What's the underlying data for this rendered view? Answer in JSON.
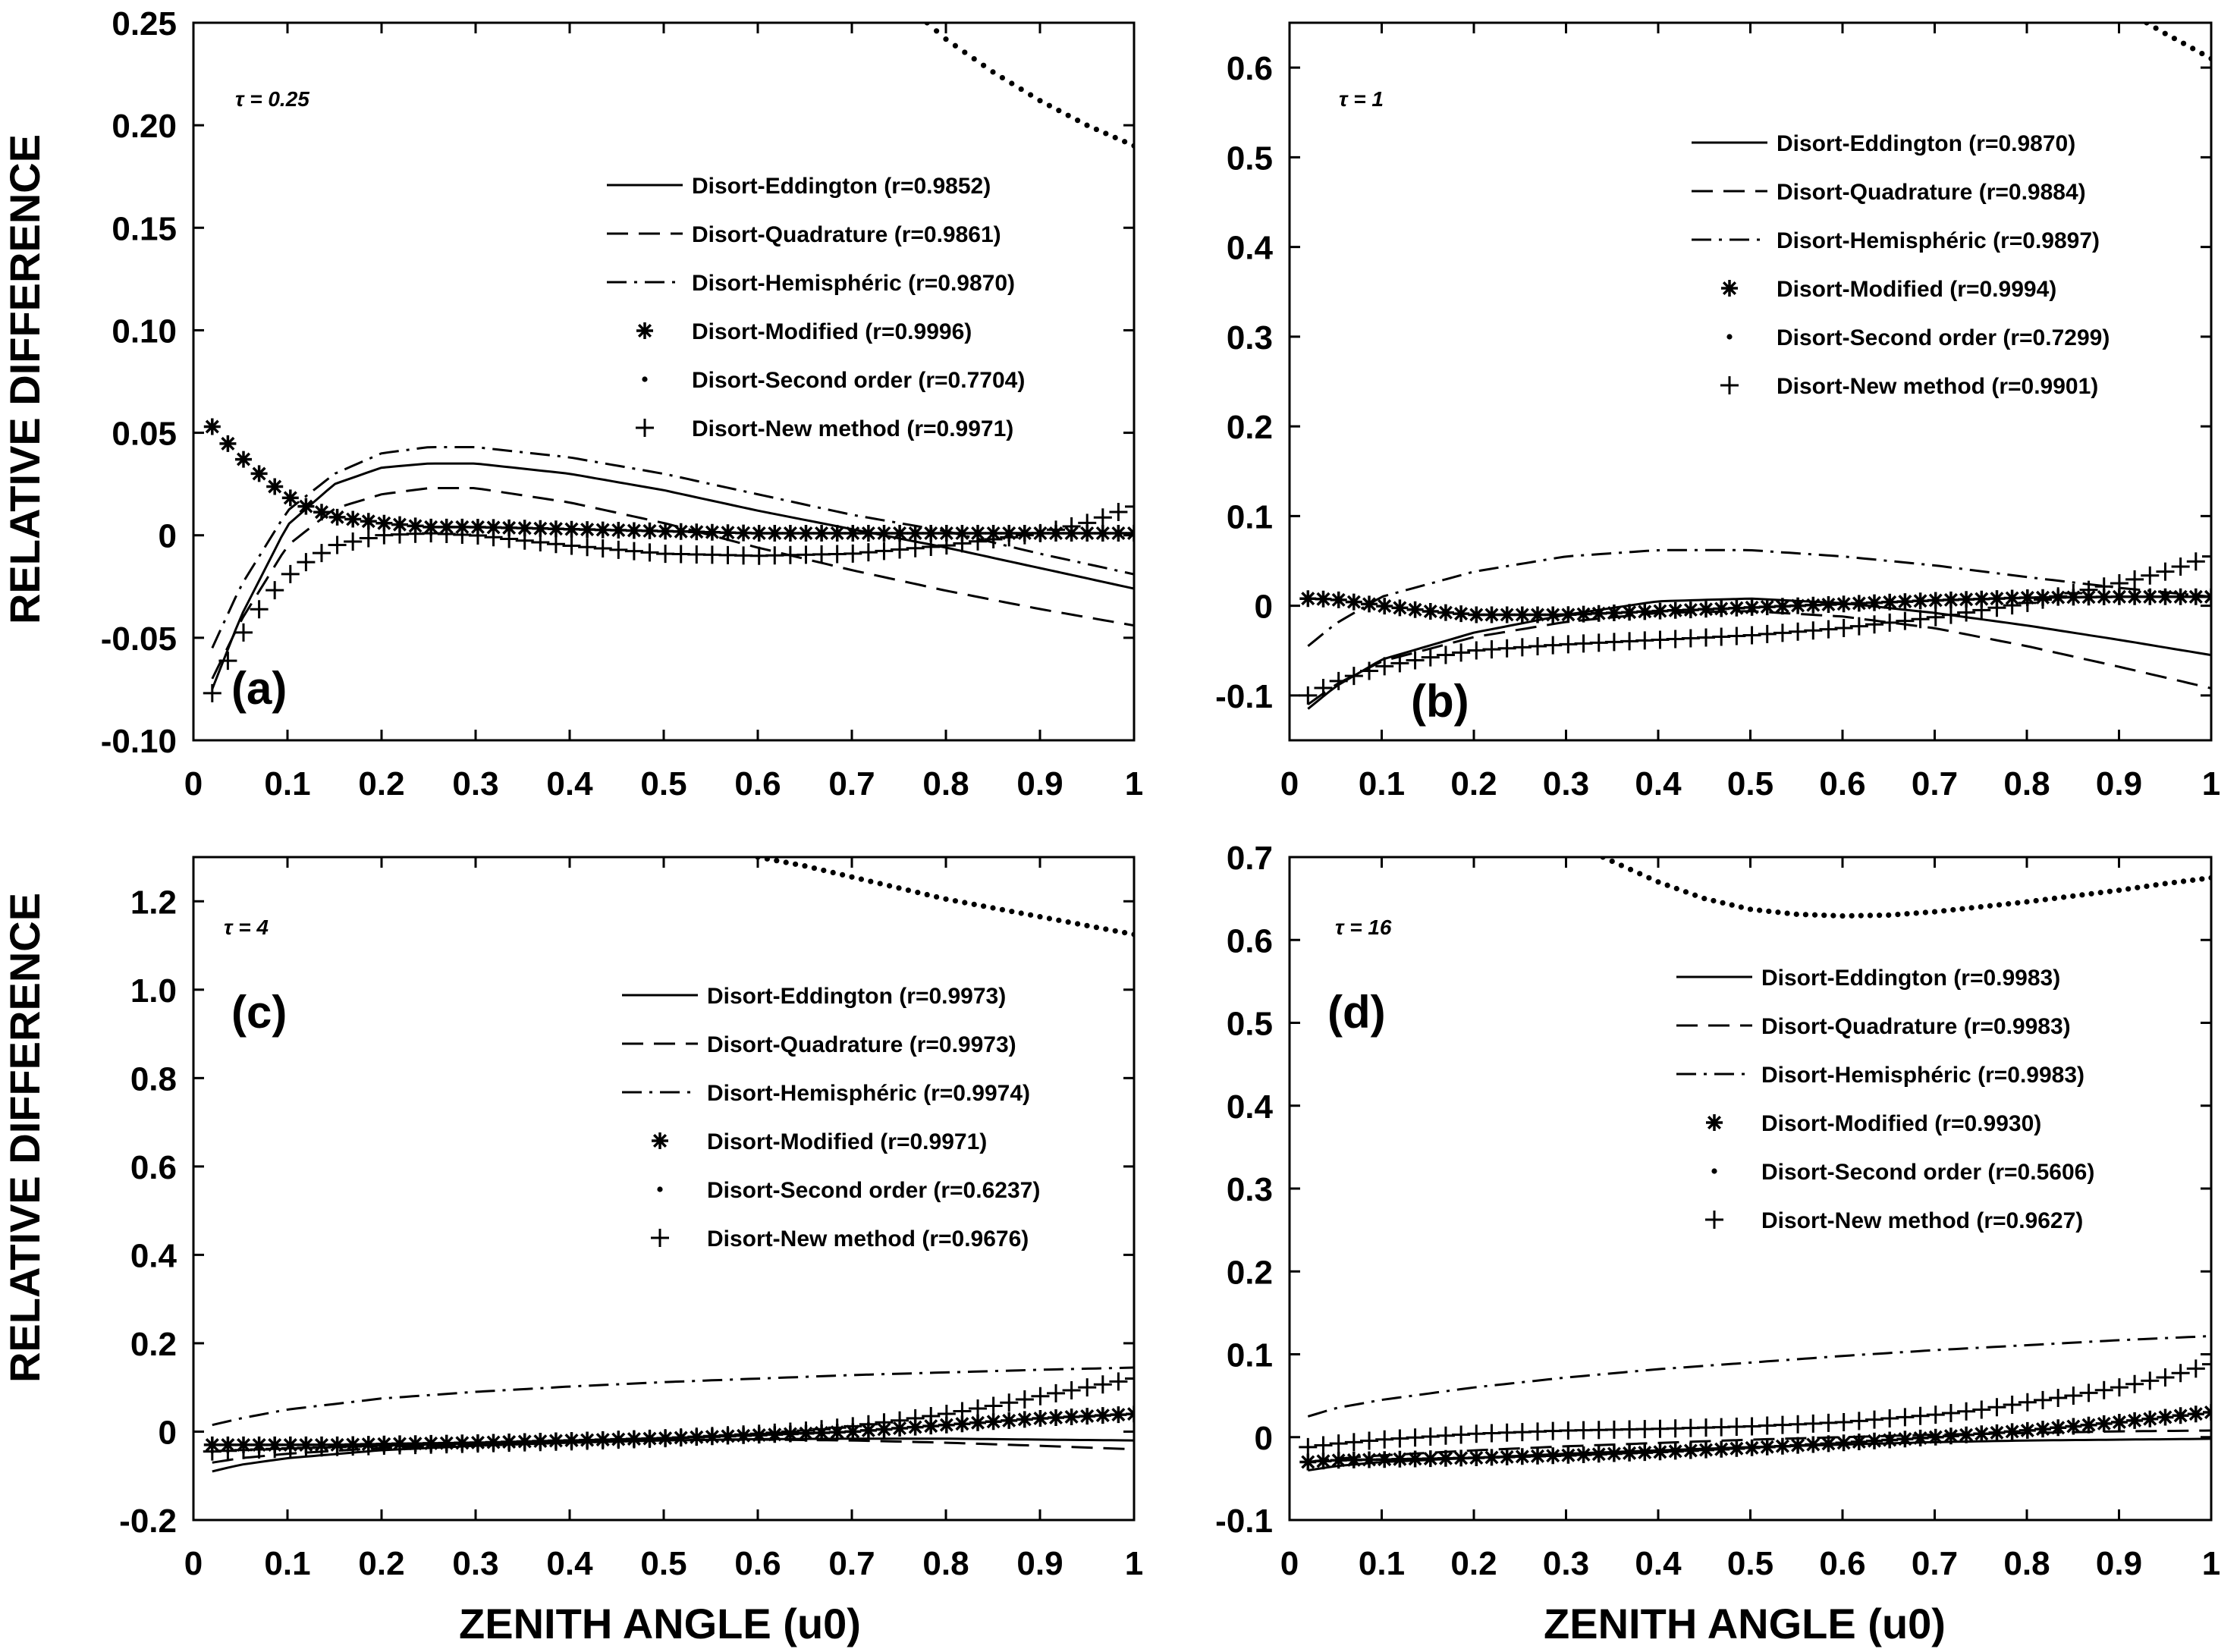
{
  "figure": {
    "ylabel": "RELATIVE DIFFERENCE",
    "xlabel": "ZENITH ANGLE (u0)"
  },
  "chart_data": [
    {
      "type": "line",
      "panel": "(a)",
      "tau_label": "τ = 0.25",
      "xlim": [
        0,
        1
      ],
      "ylim": [
        -0.1,
        0.25
      ],
      "x_ticks": [
        "0",
        "0.1",
        "0.2",
        "0.3",
        "0.4",
        "0.5",
        "0.6",
        "0.7",
        "0.8",
        "0.9",
        "1"
      ],
      "y_ticks": [
        {
          "v": -0.1,
          "label": "-0.10"
        },
        {
          "v": -0.05,
          "label": "-0.05"
        },
        {
          "v": 0,
          "label": "0"
        },
        {
          "v": 0.05,
          "label": "0.05"
        },
        {
          "v": 0.1,
          "label": "0.10"
        },
        {
          "v": 0.15,
          "label": "0.15"
        },
        {
          "v": 0.2,
          "label": "0.20"
        },
        {
          "v": 0.25,
          "label": "0.25"
        }
      ],
      "legend_position": "center-right",
      "series": [
        {
          "name": "Disort-Eddington (r=0.9852)",
          "style": "solid",
          "x": [
            0.02,
            0.05,
            0.1,
            0.15,
            0.2,
            0.25,
            0.3,
            0.4,
            0.5,
            0.6,
            0.7,
            0.8,
            0.9,
            1.0
          ],
          "y": [
            -0.075,
            -0.04,
            0.005,
            0.025,
            0.033,
            0.035,
            0.035,
            0.03,
            0.022,
            0.012,
            0.003,
            -0.006,
            -0.016,
            -0.026
          ]
        },
        {
          "name": "Disort-Quadrature (r=0.9861)",
          "style": "dashed",
          "x": [
            0.02,
            0.05,
            0.1,
            0.15,
            0.2,
            0.25,
            0.3,
            0.4,
            0.5,
            0.6,
            0.7,
            0.8,
            0.9,
            1.0
          ],
          "y": [
            -0.07,
            -0.042,
            -0.005,
            0.013,
            0.02,
            0.023,
            0.023,
            0.016,
            0.006,
            -0.006,
            -0.017,
            -0.027,
            -0.036,
            -0.044
          ]
        },
        {
          "name": "Disort-Hemisphéric (r=0.9870)",
          "style": "dashdot",
          "x": [
            0.02,
            0.05,
            0.1,
            0.15,
            0.2,
            0.25,
            0.3,
            0.4,
            0.5,
            0.6,
            0.7,
            0.8,
            0.9,
            1.0
          ],
          "y": [
            -0.055,
            -0.025,
            0.012,
            0.03,
            0.04,
            0.043,
            0.043,
            0.038,
            0.03,
            0.02,
            0.01,
            0.002,
            -0.009,
            -0.019
          ]
        },
        {
          "name": "Disort-Modified (r=0.9996)",
          "style": "asterisk",
          "x": [
            0.02,
            0.04,
            0.06,
            0.08,
            0.1,
            0.12,
            0.15,
            0.2,
            0.25,
            0.3,
            0.4,
            0.5,
            0.6,
            0.7,
            0.8,
            0.9,
            1.0
          ],
          "y": [
            0.053,
            0.043,
            0.034,
            0.026,
            0.019,
            0.014,
            0.009,
            0.006,
            0.004,
            0.004,
            0.003,
            0.002,
            0.001,
            0.001,
            0.001,
            0.001,
            0.001
          ]
        },
        {
          "name": "Disort-Second order (r=0.7704)",
          "style": "dots",
          "x": [
            0.78,
            0.8,
            0.85,
            0.9,
            0.95,
            1.0
          ],
          "y": [
            0.25,
            0.242,
            0.226,
            0.212,
            0.2,
            0.19
          ]
        },
        {
          "name": "Disort-New method (r=0.9971)",
          "style": "plus",
          "x": [
            0.02,
            0.04,
            0.06,
            0.08,
            0.1,
            0.12,
            0.15,
            0.2,
            0.25,
            0.3,
            0.4,
            0.5,
            0.6,
            0.7,
            0.8,
            0.9,
            0.95,
            1.0
          ],
          "y": [
            -0.077,
            -0.058,
            -0.042,
            -0.03,
            -0.02,
            -0.013,
            -0.005,
            0.0,
            0.001,
            0.0,
            -0.005,
            -0.009,
            -0.01,
            -0.009,
            -0.005,
            0.001,
            0.006,
            0.014
          ]
        }
      ]
    },
    {
      "type": "line",
      "panel": "(b)",
      "tau_label": "τ = 1",
      "xlim": [
        0,
        1
      ],
      "ylim": [
        -0.15,
        0.65
      ],
      "x_ticks": [
        "0",
        "0.1",
        "0.2",
        "0.3",
        "0.4",
        "0.5",
        "0.6",
        "0.7",
        "0.8",
        "0.9",
        "1"
      ],
      "y_ticks": [
        {
          "v": -0.1,
          "label": "-0.1"
        },
        {
          "v": 0,
          "label": "0"
        },
        {
          "v": 0.1,
          "label": "0.1"
        },
        {
          "v": 0.2,
          "label": "0.2"
        },
        {
          "v": 0.3,
          "label": "0.3"
        },
        {
          "v": 0.4,
          "label": "0.4"
        },
        {
          "v": 0.5,
          "label": "0.5"
        },
        {
          "v": 0.6,
          "label": "0.6"
        }
      ],
      "legend_position": "top-right",
      "series": [
        {
          "name": "Disort-Eddington (r=0.9870)",
          "style": "solid",
          "x": [
            0.02,
            0.05,
            0.1,
            0.2,
            0.3,
            0.4,
            0.5,
            0.6,
            0.7,
            0.8,
            0.9,
            1.0
          ],
          "y": [
            -0.115,
            -0.09,
            -0.06,
            -0.03,
            -0.01,
            0.005,
            0.008,
            0.003,
            -0.008,
            -0.022,
            -0.038,
            -0.055
          ]
        },
        {
          "name": "Disort-Quadrature (r=0.9884)",
          "style": "dashed",
          "x": [
            0.02,
            0.05,
            0.1,
            0.2,
            0.3,
            0.4,
            0.5,
            0.6,
            0.7,
            0.8,
            0.9,
            1.0
          ],
          "y": [
            -0.11,
            -0.088,
            -0.062,
            -0.035,
            -0.018,
            -0.008,
            -0.006,
            -0.012,
            -0.025,
            -0.045,
            -0.068,
            -0.092
          ]
        },
        {
          "name": "Disort-Hemisphéric (r=0.9897)",
          "style": "dashdot",
          "x": [
            0.02,
            0.05,
            0.1,
            0.2,
            0.3,
            0.4,
            0.5,
            0.6,
            0.7,
            0.8,
            0.9,
            1.0
          ],
          "y": [
            -0.045,
            -0.02,
            0.01,
            0.038,
            0.055,
            0.062,
            0.062,
            0.055,
            0.045,
            0.032,
            0.02,
            0.01
          ]
        },
        {
          "name": "Disort-Modified (r=0.9994)",
          "style": "asterisk",
          "x": [
            0.02,
            0.05,
            0.1,
            0.15,
            0.2,
            0.3,
            0.4,
            0.5,
            0.6,
            0.7,
            0.8,
            0.9,
            1.0
          ],
          "y": [
            0.008,
            0.007,
            0.0,
            -0.006,
            -0.01,
            -0.01,
            -0.006,
            -0.002,
            0.002,
            0.006,
            0.009,
            0.01,
            0.01
          ]
        },
        {
          "name": "Disort-Second order (r=0.7299)",
          "style": "dots",
          "x": [
            0.93,
            0.95,
            0.97,
            1.0
          ],
          "y": [
            0.65,
            0.638,
            0.627,
            0.61
          ]
        },
        {
          "name": "Disort-New method (r=0.9901)",
          "style": "plus",
          "x": [
            0.02,
            0.05,
            0.1,
            0.15,
            0.2,
            0.3,
            0.4,
            0.5,
            0.6,
            0.7,
            0.8,
            0.9,
            0.95,
            1.0
          ],
          "y": [
            -0.1,
            -0.085,
            -0.068,
            -0.058,
            -0.05,
            -0.043,
            -0.038,
            -0.033,
            -0.025,
            -0.013,
            0.003,
            0.025,
            0.038,
            0.055
          ]
        }
      ]
    },
    {
      "type": "line",
      "panel": "(c)",
      "tau_label": "τ = 4",
      "xlim": [
        0,
        1
      ],
      "ylim": [
        -0.2,
        1.3
      ],
      "x_ticks": [
        "0",
        "0.1",
        "0.2",
        "0.3",
        "0.4",
        "0.5",
        "0.6",
        "0.7",
        "0.8",
        "0.9",
        "1"
      ],
      "y_ticks": [
        {
          "v": -0.2,
          "label": "-0.2"
        },
        {
          "v": 0,
          "label": "0"
        },
        {
          "v": 0.2,
          "label": "0.2"
        },
        {
          "v": 0.4,
          "label": "0.4"
        },
        {
          "v": 0.6,
          "label": "0.6"
        },
        {
          "v": 0.8,
          "label": "0.8"
        },
        {
          "v": 1.0,
          "label": "1.0"
        },
        {
          "v": 1.2,
          "label": "1.2"
        }
      ],
      "legend_position": "center-right",
      "series": [
        {
          "name": "Disort-Eddington (r=0.9973)",
          "style": "solid",
          "x": [
            0.02,
            0.05,
            0.1,
            0.2,
            0.3,
            0.4,
            0.5,
            0.6,
            0.7,
            0.8,
            0.9,
            1.0
          ],
          "y": [
            -0.09,
            -0.075,
            -0.06,
            -0.042,
            -0.032,
            -0.025,
            -0.02,
            -0.017,
            -0.016,
            -0.016,
            -0.018,
            -0.02
          ]
        },
        {
          "name": "Disort-Quadrature (r=0.9973)",
          "style": "dashed",
          "x": [
            0.02,
            0.05,
            0.1,
            0.2,
            0.3,
            0.4,
            0.5,
            0.6,
            0.7,
            0.8,
            0.9,
            1.0
          ],
          "y": [
            -0.07,
            -0.06,
            -0.05,
            -0.037,
            -0.029,
            -0.023,
            -0.019,
            -0.018,
            -0.02,
            -0.025,
            -0.032,
            -0.04
          ]
        },
        {
          "name": "Disort-Hemisphéric (r=0.9974)",
          "style": "dashdot",
          "x": [
            0.02,
            0.05,
            0.1,
            0.2,
            0.3,
            0.4,
            0.5,
            0.6,
            0.7,
            0.8,
            0.9,
            1.0
          ],
          "y": [
            0.015,
            0.03,
            0.05,
            0.075,
            0.09,
            0.102,
            0.112,
            0.12,
            0.128,
            0.134,
            0.14,
            0.145
          ]
        },
        {
          "name": "Disort-Modified (r=0.9971)",
          "style": "asterisk",
          "x": [
            0.02,
            0.05,
            0.1,
            0.15,
            0.2,
            0.3,
            0.4,
            0.5,
            0.6,
            0.7,
            0.8,
            0.9,
            1.0
          ],
          "y": [
            -0.03,
            -0.03,
            -0.03,
            -0.03,
            -0.028,
            -0.025,
            -0.02,
            -0.015,
            -0.008,
            0.0,
            0.015,
            0.03,
            0.04
          ]
        },
        {
          "name": "Disort-Second order (r=0.6237)",
          "style": "dots",
          "x": [
            0.6,
            0.65,
            0.7,
            0.75,
            0.8,
            0.85,
            0.9,
            0.95,
            1.0
          ],
          "y": [
            1.3,
            1.28,
            1.255,
            1.23,
            1.205,
            1.185,
            1.165,
            1.145,
            1.125
          ]
        },
        {
          "name": "Disort-New method (r=0.9676)",
          "style": "plus",
          "x": [
            0.02,
            0.05,
            0.1,
            0.2,
            0.3,
            0.4,
            0.5,
            0.6,
            0.65,
            0.7,
            0.75,
            0.8,
            0.85,
            0.9,
            0.95,
            1.0
          ],
          "y": [
            -0.045,
            -0.042,
            -0.038,
            -0.032,
            -0.027,
            -0.022,
            -0.015,
            -0.005,
            0.002,
            0.012,
            0.025,
            0.04,
            0.058,
            0.08,
            0.1,
            0.12
          ]
        }
      ]
    },
    {
      "type": "line",
      "panel": "(d)",
      "tau_label": "τ = 16",
      "xlim": [
        0,
        1
      ],
      "ylim": [
        -0.1,
        0.7
      ],
      "x_ticks": [
        "0",
        "0.1",
        "0.2",
        "0.3",
        "0.4",
        "0.5",
        "0.6",
        "0.7",
        "0.8",
        "0.9",
        "1"
      ],
      "y_ticks": [
        {
          "v": -0.1,
          "label": "-0.1"
        },
        {
          "v": 0,
          "label": "0"
        },
        {
          "v": 0.1,
          "label": "0.1"
        },
        {
          "v": 0.2,
          "label": "0.2"
        },
        {
          "v": 0.3,
          "label": "0.3"
        },
        {
          "v": 0.4,
          "label": "0.4"
        },
        {
          "v": 0.5,
          "label": "0.5"
        },
        {
          "v": 0.6,
          "label": "0.6"
        },
        {
          "v": 0.7,
          "label": "0.7"
        }
      ],
      "legend_position": "center-right",
      "series": [
        {
          "name": "Disort-Eddington (r=0.9983)",
          "style": "solid",
          "x": [
            0.02,
            0.05,
            0.1,
            0.2,
            0.3,
            0.4,
            0.5,
            0.6,
            0.7,
            0.8,
            0.9,
            1.0
          ],
          "y": [
            -0.04,
            -0.035,
            -0.03,
            -0.025,
            -0.02,
            -0.016,
            -0.012,
            -0.009,
            -0.006,
            -0.004,
            -0.003,
            -0.002
          ]
        },
        {
          "name": "Disort-Quadrature (r=0.9983)",
          "style": "dashed",
          "x": [
            0.02,
            0.05,
            0.1,
            0.2,
            0.3,
            0.4,
            0.5,
            0.6,
            0.7,
            0.8,
            0.9,
            1.0
          ],
          "y": [
            -0.03,
            -0.026,
            -0.022,
            -0.016,
            -0.011,
            -0.007,
            -0.003,
            0.0,
            0.003,
            0.005,
            0.007,
            0.008
          ]
        },
        {
          "name": "Disort-Hemisphéric (r=0.9983)",
          "style": "dashdot",
          "x": [
            0.02,
            0.05,
            0.1,
            0.2,
            0.3,
            0.4,
            0.5,
            0.6,
            0.7,
            0.8,
            0.9,
            1.0
          ],
          "y": [
            0.025,
            0.035,
            0.045,
            0.06,
            0.072,
            0.082,
            0.09,
            0.098,
            0.105,
            0.111,
            0.117,
            0.122
          ]
        },
        {
          "name": "Disort-Modified (r=0.9930)",
          "style": "asterisk",
          "x": [
            0.02,
            0.05,
            0.1,
            0.15,
            0.2,
            0.3,
            0.4,
            0.5,
            0.6,
            0.7,
            0.8,
            0.9,
            1.0
          ],
          "y": [
            -0.03,
            -0.028,
            -0.027,
            -0.026,
            -0.025,
            -0.022,
            -0.018,
            -0.013,
            -0.007,
            0.0,
            0.008,
            0.018,
            0.03
          ]
        },
        {
          "name": "Disort-Second order (r=0.5606)",
          "style": "dots",
          "x": [
            0.34,
            0.4,
            0.45,
            0.5,
            0.55,
            0.6,
            0.65,
            0.7,
            0.75,
            0.8,
            0.85,
            0.9,
            0.95,
            1.0
          ],
          "y": [
            0.7,
            0.67,
            0.65,
            0.637,
            0.631,
            0.629,
            0.63,
            0.634,
            0.64,
            0.646,
            0.653,
            0.66,
            0.668,
            0.675
          ]
        },
        {
          "name": "Disort-New method (r=0.9627)",
          "style": "plus",
          "x": [
            0.02,
            0.05,
            0.1,
            0.2,
            0.3,
            0.4,
            0.5,
            0.6,
            0.7,
            0.75,
            0.8,
            0.85,
            0.9,
            0.95,
            1.0
          ],
          "y": [
            -0.012,
            -0.008,
            -0.003,
            0.004,
            0.008,
            0.01,
            0.013,
            0.018,
            0.027,
            0.033,
            0.042,
            0.05,
            0.06,
            0.072,
            0.088
          ]
        }
      ]
    }
  ]
}
